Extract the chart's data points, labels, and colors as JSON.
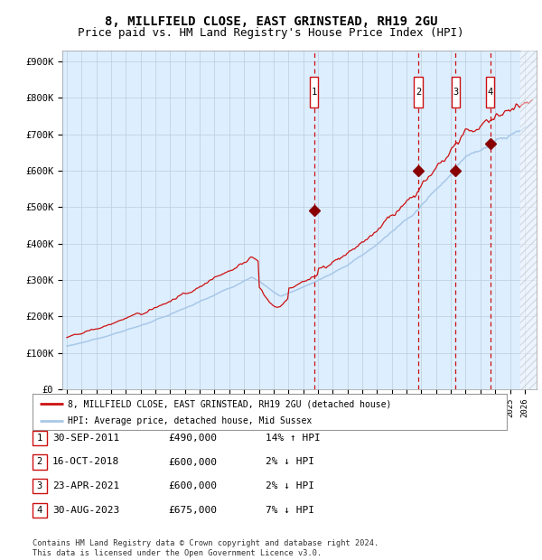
{
  "title1": "8, MILLFIELD CLOSE, EAST GRINSTEAD, RH19 2GU",
  "title2": "Price paid vs. HM Land Registry's House Price Index (HPI)",
  "ylabel_ticks": [
    "£0",
    "£100K",
    "£200K",
    "£300K",
    "£400K",
    "£500K",
    "£600K",
    "£700K",
    "£800K",
    "£900K"
  ],
  "ytick_values": [
    0,
    100000,
    200000,
    300000,
    400000,
    500000,
    600000,
    700000,
    800000,
    900000
  ],
  "ylim": [
    0,
    930000
  ],
  "xlim_start": 1994.7,
  "xlim_end": 2026.8,
  "hpi_color": "#a8c8e8",
  "price_color": "#cc1111",
  "background_color": "#ddeeff",
  "sale_dates": [
    2011.75,
    2018.79,
    2021.32,
    2023.66
  ],
  "sale_prices": [
    490000,
    600000,
    600000,
    675000
  ],
  "sale_labels": [
    "1",
    "2",
    "3",
    "4"
  ],
  "dashed_line_color": "#cc1111",
  "marker_color": "#880000",
  "legend_line1": "8, MILLFIELD CLOSE, EAST GRINSTEAD, RH19 2GU (detached house)",
  "legend_line2": "HPI: Average price, detached house, Mid Sussex",
  "table_rows": [
    [
      "1",
      "30-SEP-2011",
      "£490,000",
      "14% ↑ HPI"
    ],
    [
      "2",
      "16-OCT-2018",
      "£600,000",
      "2% ↓ HPI"
    ],
    [
      "3",
      "23-APR-2021",
      "£600,000",
      "2% ↓ HPI"
    ],
    [
      "4",
      "30-AUG-2023",
      "£675,000",
      "7% ↓ HPI"
    ]
  ],
  "footnote": "Contains HM Land Registry data © Crown copyright and database right 2024.\nThis data is licensed under the Open Government Licence v3.0.",
  "grid_color": "#bbccdd",
  "title_fontsize": 10,
  "subtitle_fontsize": 9
}
